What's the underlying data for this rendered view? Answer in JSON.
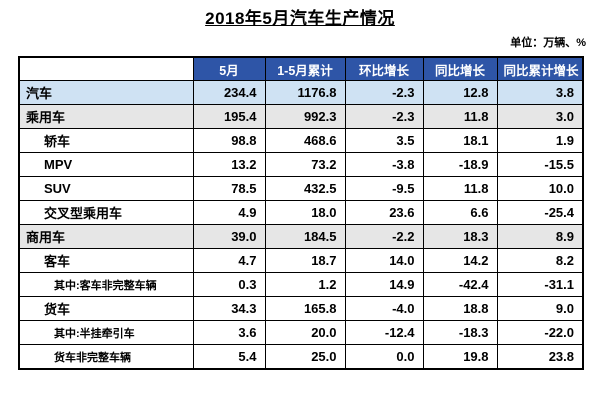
{
  "title": "2018年5月汽车生产情况",
  "unit": "单位：万辆、%",
  "columns": [
    "",
    "5月",
    "1-5月累计",
    "环比增长",
    "同比增长",
    "同比累计增长"
  ],
  "rows": [
    {
      "label": "汽车",
      "level": 0,
      "values": [
        "234.4",
        "1176.8",
        "-2.3",
        "12.8",
        "3.8"
      ]
    },
    {
      "label": "乘用车",
      "level": 1,
      "values": [
        "195.4",
        "992.3",
        "-2.3",
        "11.8",
        "3.0"
      ]
    },
    {
      "label": "轿车",
      "level": 2,
      "values": [
        "98.8",
        "468.6",
        "3.5",
        "18.1",
        "1.9"
      ]
    },
    {
      "label": "MPV",
      "level": 2,
      "values": [
        "13.2",
        "73.2",
        "-3.8",
        "-18.9",
        "-15.5"
      ]
    },
    {
      "label": "SUV",
      "level": 2,
      "values": [
        "78.5",
        "432.5",
        "-9.5",
        "11.8",
        "10.0"
      ]
    },
    {
      "label": "交叉型乘用车",
      "level": 2,
      "values": [
        "4.9",
        "18.0",
        "23.6",
        "6.6",
        "-25.4"
      ]
    },
    {
      "label": "商用车",
      "level": 1,
      "values": [
        "39.0",
        "184.5",
        "-2.2",
        "18.3",
        "8.9"
      ]
    },
    {
      "label": "客车",
      "level": 2,
      "values": [
        "4.7",
        "18.7",
        "14.0",
        "14.2",
        "8.2"
      ]
    },
    {
      "label": "其中:客车非完整车辆",
      "level": 3,
      "values": [
        "0.3",
        "1.2",
        "14.9",
        "-42.4",
        "-31.1"
      ]
    },
    {
      "label": "货车",
      "level": 2,
      "values": [
        "34.3",
        "165.8",
        "-4.0",
        "18.8",
        "9.0"
      ]
    },
    {
      "label": "其中:半挂牵引车",
      "level": 3,
      "values": [
        "3.6",
        "20.0",
        "-12.4",
        "-18.3",
        "-22.0"
      ]
    },
    {
      "label": "货车非完整车辆",
      "level": 3,
      "values": [
        "5.4",
        "25.0",
        "0.0",
        "19.8",
        "23.8"
      ]
    }
  ]
}
